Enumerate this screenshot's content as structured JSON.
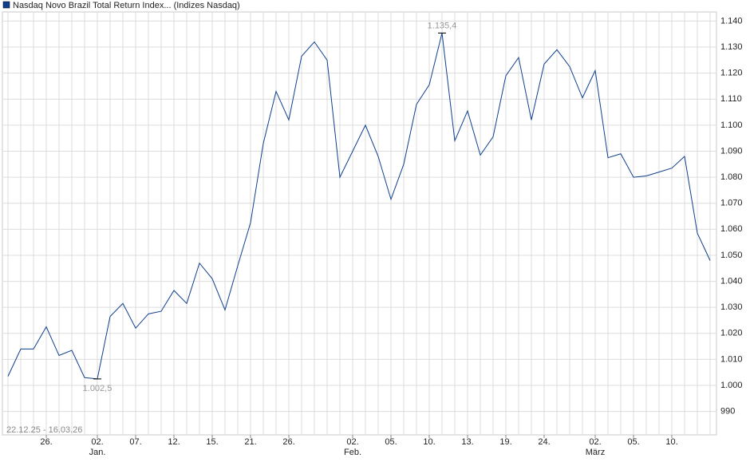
{
  "chart_data": {
    "type": "line",
    "title": "Nasdaq Novo Brazil Total Return Index... (Indizes Nasdaq)",
    "date_range": "22.12.25 - 16.03.26",
    "categories": [
      null,
      null,
      null,
      "26.",
      null,
      null,
      null,
      "02.",
      null,
      null,
      "07.",
      null,
      null,
      "12.",
      null,
      null,
      "15.",
      null,
      null,
      "21.",
      null,
      null,
      "26.",
      null,
      null,
      null,
      null,
      "02.",
      null,
      null,
      "05.",
      null,
      null,
      "10.",
      null,
      null,
      "13.",
      null,
      null,
      "19.",
      null,
      null,
      "24.",
      null,
      null,
      null,
      "02.",
      null,
      null,
      "05.",
      null,
      null,
      "10.",
      null,
      null,
      null
    ],
    "months": [
      null,
      null,
      null,
      null,
      null,
      null,
      null,
      "Jan.",
      null,
      null,
      null,
      null,
      null,
      null,
      null,
      null,
      null,
      null,
      null,
      null,
      null,
      null,
      null,
      null,
      null,
      null,
      null,
      "Feb.",
      null,
      null,
      null,
      null,
      null,
      null,
      null,
      null,
      null,
      null,
      null,
      null,
      null,
      null,
      null,
      null,
      null,
      null,
      "März",
      null,
      null,
      null,
      null,
      null,
      null,
      null,
      null,
      null
    ],
    "series": [
      {
        "name": "Nasdaq Novo Brazil Total Return Index",
        "color": "#0f3f8f",
        "values": [
          1003.5,
          1014,
          1014,
          1022.5,
          1011.5,
          1013.5,
          1003,
          1002.5,
          1026.5,
          1031.5,
          1022,
          1027.5,
          1028.5,
          1036.5,
          1031.5,
          1047,
          1041,
          1029,
          1046,
          1062.5,
          1093,
          1113,
          1102,
          1126.5,
          1132,
          1125,
          1080,
          1090,
          1100,
          1088,
          1071.5,
          1085,
          1108,
          1115.5,
          1135.4,
          1094,
          1105.5,
          1088.5,
          1095.5,
          1119,
          1126,
          1102,
          1123.5,
          1129,
          1122.5,
          1110.5,
          1121,
          1087.5,
          1089,
          1080,
          1080.5,
          1082,
          1083.5,
          1088,
          1058.5,
          1048
        ],
        "value_labels": [
          null,
          null,
          null,
          null,
          null,
          null,
          null,
          "1.002,5",
          null,
          null,
          null,
          null,
          null,
          null,
          null,
          null,
          null,
          null,
          null,
          null,
          null,
          null,
          null,
          null,
          null,
          null,
          null,
          null,
          null,
          null,
          null,
          null,
          null,
          null,
          "1.135,4",
          null,
          null,
          null,
          null,
          null,
          null,
          null,
          null,
          null,
          null,
          null,
          null,
          null,
          null,
          null,
          null,
          null,
          null,
          null,
          null,
          null
        ]
      }
    ],
    "ylim": [
      981,
      1143.5
    ],
    "yticks": [
      990,
      {
        "value": 1000,
        "label": "1.000"
      },
      {
        "value": 1010,
        "label": "1.010"
      },
      {
        "value": 1020,
        "label": "1.020"
      },
      {
        "value": 1030,
        "label": "1.030"
      },
      {
        "value": 1040,
        "label": "1.040"
      },
      {
        "value": 1050,
        "label": "1.050"
      },
      {
        "value": 1060,
        "label": "1.060"
      },
      {
        "value": 1070,
        "label": "1.070"
      },
      {
        "value": 1080,
        "label": "1.080"
      },
      {
        "value": 1090,
        "label": "1.090"
      },
      {
        "value": 1100,
        "label": "1.100"
      },
      {
        "value": 1110,
        "label": "1.110"
      },
      {
        "value": 1120,
        "label": "1.120"
      },
      {
        "value": 1130,
        "label": "1.130"
      },
      {
        "value": 1140,
        "label": "1.140"
      }
    ],
    "grid": true
  }
}
